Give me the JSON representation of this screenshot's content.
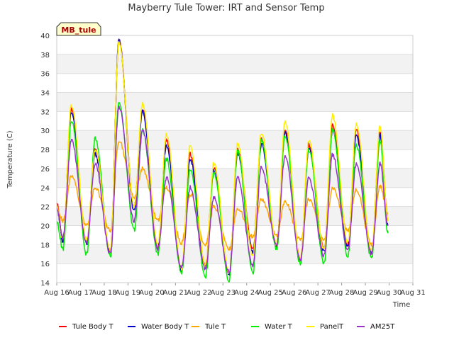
{
  "chart_data": {
    "type": "line",
    "title": "Mayberry Tule Tower: IRT and Sensor Temp",
    "xlabel": "Time",
    "ylabel": "Temperature (C)",
    "badge": "MB_tule",
    "ylim": [
      14,
      40
    ],
    "yticks": [
      14,
      16,
      18,
      20,
      22,
      24,
      26,
      28,
      30,
      32,
      34,
      36,
      38,
      40
    ],
    "xlim": [
      16,
      31
    ],
    "xticks": [
      16,
      17,
      18,
      19,
      20,
      21,
      22,
      23,
      24,
      25,
      26,
      27,
      28,
      29,
      30,
      31
    ],
    "xtick_labels": [
      "Aug 16",
      "Aug 17",
      "Aug 18",
      "Aug 19",
      "Aug 20",
      "Aug 21",
      "Aug 22",
      "Aug 23",
      "Aug 24",
      "Aug 25",
      "Aug 26",
      "Aug 27",
      "Aug 28",
      "Aug 29",
      "Aug 30",
      "Aug 31"
    ],
    "day_starts": [
      16,
      17,
      18,
      19,
      20,
      21,
      22,
      23,
      24,
      25,
      26,
      27,
      28,
      29
    ],
    "start_values": {
      "Tule Body T": 22.3,
      "Water Body T": 22.0,
      "Tule T": 21.8,
      "Water T": 20.4,
      "PanelT": 22.0,
      "AM25T": 21.8
    },
    "end_x": 29.95,
    "end_values": {
      "Tule Body T": 20.7,
      "Water Body T": 20.0,
      "Tule T": 21.2,
      "Water T": 19.2,
      "PanelT": 20.5,
      "AM25T": 20.0
    },
    "series": [
      {
        "name": "Tule Body T",
        "color": "#ff0000",
        "mins": [
          18.5,
          18.3,
          17.2,
          22.0,
          17.8,
          15.3,
          15.8,
          15.0,
          17.5,
          17.9,
          16.5,
          17.6,
          18.0,
          17.1
        ],
        "maxs": [
          32.2,
          28.0,
          39.5,
          32.2,
          29.0,
          27.5,
          26.0,
          28.0,
          29.0,
          30.0,
          28.5,
          30.5,
          30.0,
          30.0
        ]
      },
      {
        "name": "Water Body T",
        "color": "#0000cc",
        "mins": [
          18.3,
          18.1,
          17.0,
          21.5,
          17.5,
          15.2,
          15.5,
          14.8,
          17.2,
          17.8,
          16.2,
          17.2,
          17.8,
          17.0
        ],
        "maxs": [
          32.0,
          27.5,
          39.5,
          32.0,
          28.5,
          27.0,
          25.8,
          27.5,
          28.5,
          29.8,
          28.0,
          30.0,
          29.5,
          29.5
        ]
      },
      {
        "name": "Tule T",
        "color": "#ffa500",
        "mins": [
          20.5,
          20.0,
          19.5,
          23.0,
          20.5,
          18.2,
          18.0,
          17.5,
          18.8,
          19.0,
          18.5,
          18.5,
          19.5,
          18.0
        ],
        "maxs": [
          25.2,
          24.0,
          29.0,
          26.0,
          24.0,
          23.3,
          22.0,
          21.8,
          22.8,
          22.5,
          22.8,
          24.0,
          23.8,
          24.2
        ]
      },
      {
        "name": "Water T",
        "color": "#00ee00",
        "mins": [
          17.5,
          17.0,
          16.8,
          19.5,
          17.0,
          15.0,
          14.5,
          14.2,
          15.0,
          17.5,
          16.0,
          16.0,
          16.8,
          16.5
        ],
        "maxs": [
          31.0,
          29.2,
          33.0,
          30.0,
          27.0,
          26.0,
          25.5,
          27.8,
          29.0,
          29.5,
          28.0,
          30.2,
          28.5,
          29.0
        ]
      },
      {
        "name": "PanelT",
        "color": "#ffee00",
        "mins": [
          18.5,
          18.5,
          17.3,
          22.0,
          18.0,
          15.5,
          15.8,
          15.0,
          16.8,
          18.0,
          16.5,
          17.5,
          18.2,
          17.2
        ],
        "maxs": [
          32.7,
          28.0,
          39.3,
          32.8,
          29.6,
          28.3,
          26.5,
          28.6,
          29.7,
          30.9,
          28.9,
          31.6,
          30.6,
          30.4
        ]
      },
      {
        "name": "AM25T",
        "color": "#9932cc",
        "mins": [
          18.7,
          18.2,
          17.0,
          20.5,
          17.5,
          15.6,
          15.5,
          15.1,
          15.8,
          18.0,
          16.3,
          16.8,
          17.5,
          17.0
        ],
        "maxs": [
          29.0,
          26.5,
          32.5,
          30.0,
          25.0,
          24.0,
          23.0,
          25.0,
          26.2,
          27.3,
          25.0,
          27.5,
          26.5,
          26.5
        ]
      }
    ]
  }
}
